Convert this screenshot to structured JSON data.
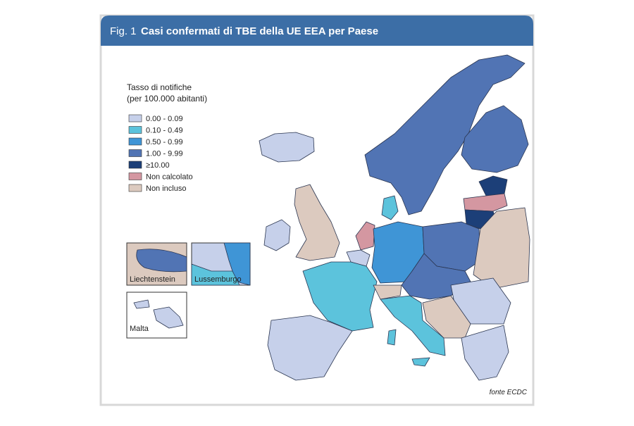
{
  "header": {
    "fig": "Fig. 1",
    "title": "Casi confermati di TBE della UE EEA per Paese"
  },
  "legend": {
    "title": [
      "Tasso di notifiche",
      "(per 100.000 abitanti)"
    ],
    "items": [
      {
        "label": "0.00 - 0.09",
        "color": "#c6d0ea"
      },
      {
        "label": "0.10 - 0.49",
        "color": "#5cc3dc"
      },
      {
        "label": "0.50 - 0.99",
        "color": "#3f95d6"
      },
      {
        "label": "1.00 - 9.99",
        "color": "#5174b4"
      },
      {
        "label": "≥10.00",
        "color": "#1c3f78"
      },
      {
        "label": "Non calcolato",
        "color": "#d497a1"
      },
      {
        "label": "Non incluso",
        "color": "#dccabf"
      }
    ]
  },
  "insets": [
    "Liechtenstein",
    "Lussemburgo",
    "Malta"
  ],
  "source": "fonte ECDC"
}
